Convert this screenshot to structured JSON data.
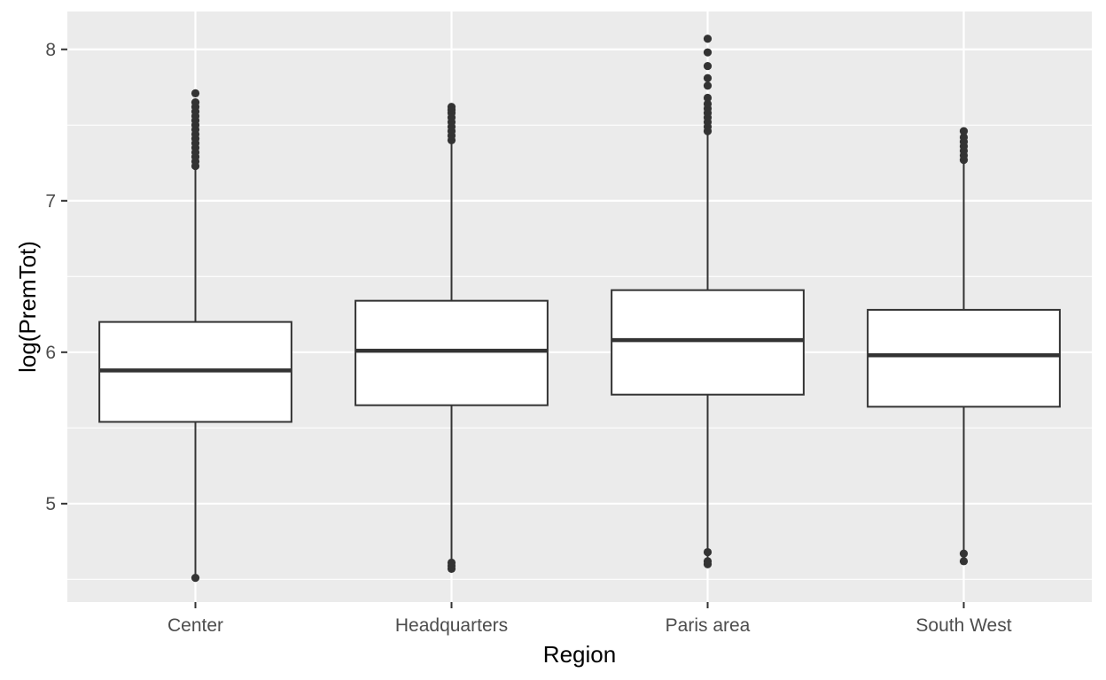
{
  "chart_data": {
    "type": "boxplot",
    "xlabel": "Region",
    "ylabel": "log(PremTot)",
    "ylim": [
      4.35,
      8.25
    ],
    "yticks": [
      5,
      6,
      7,
      8
    ],
    "grid": true,
    "legend": "none",
    "colors": {
      "panel": "#ebebeb",
      "grid": "#ffffff",
      "box_fill": "#ffffff",
      "stroke": "#333333"
    },
    "categories": [
      "Center",
      "Headquarters",
      "Paris area",
      "South West"
    ],
    "boxes": [
      {
        "category": "Center",
        "whisker_low": 4.51,
        "q1": 5.54,
        "median": 5.88,
        "q3": 6.2,
        "whisker_high": 7.21,
        "outliers": [
          4.51,
          7.23,
          7.26,
          7.29,
          7.32,
          7.35,
          7.38,
          7.41,
          7.44,
          7.47,
          7.5,
          7.53,
          7.56,
          7.59,
          7.62,
          7.65,
          7.71
        ]
      },
      {
        "category": "Headquarters",
        "whisker_low": 4.59,
        "q1": 5.65,
        "median": 6.01,
        "q3": 6.34,
        "whisker_high": 7.38,
        "outliers": [
          4.57,
          4.59,
          4.61,
          7.4,
          7.43,
          7.46,
          7.49,
          7.52,
          7.55,
          7.58,
          7.6,
          7.62
        ]
      },
      {
        "category": "Paris area",
        "whisker_low": 4.61,
        "q1": 5.72,
        "median": 6.08,
        "q3": 6.41,
        "whisker_high": 7.44,
        "outliers": [
          4.6,
          4.62,
          4.68,
          7.46,
          7.49,
          7.52,
          7.55,
          7.58,
          7.61,
          7.64,
          7.68,
          7.76,
          7.81,
          7.89,
          7.98,
          8.07
        ]
      },
      {
        "category": "South West",
        "whisker_low": 4.62,
        "q1": 5.64,
        "median": 5.98,
        "q3": 6.28,
        "whisker_high": 7.25,
        "outliers": [
          4.62,
          4.67,
          7.27,
          7.3,
          7.33,
          7.36,
          7.39,
          7.42,
          7.46
        ]
      }
    ]
  }
}
